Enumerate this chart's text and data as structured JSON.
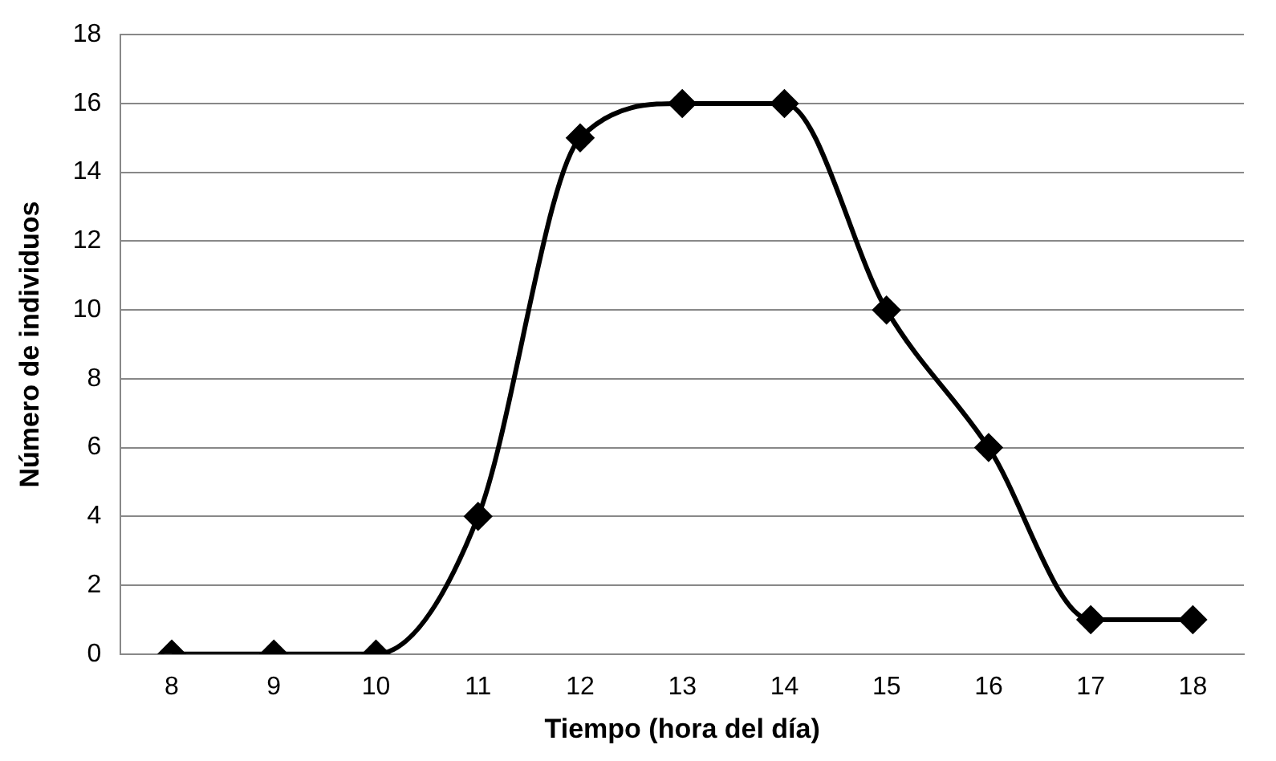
{
  "chart_data": {
    "type": "line",
    "xlabel": "Tiempo (hora del día)",
    "ylabel": "Número de individuos",
    "categories": [
      "8",
      "9",
      "10",
      "11",
      "12",
      "13",
      "14",
      "15",
      "16",
      "17",
      "18"
    ],
    "series": [
      {
        "color": "#000000",
        "values": [
          0,
          0,
          0,
          4,
          15,
          16,
          16,
          10,
          6,
          1,
          1
        ]
      }
    ],
    "ylim": [
      0,
      18
    ],
    "yticks": [
      0,
      2,
      4,
      6,
      8,
      10,
      12,
      14,
      16,
      18
    ],
    "grid": "y",
    "legend": false,
    "marker": "diamond",
    "line_style": "solid"
  }
}
